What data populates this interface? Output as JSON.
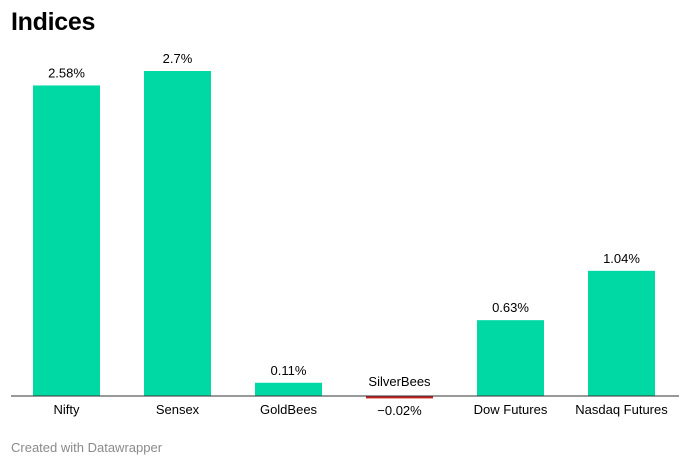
{
  "title": "Indices",
  "footer": "Created with Datawrapper",
  "colors": {
    "positive": "#00d9a3",
    "negative": "#c71e1d",
    "text": "#000000",
    "baseline": "#333333"
  },
  "chart_data": {
    "type": "bar",
    "title": "Indices",
    "xlabel": "",
    "ylabel": "",
    "categories": [
      "Nifty",
      "Sensex",
      "GoldBees",
      "SilverBees",
      "Dow Futures",
      "Nasdaq Futures"
    ],
    "values": [
      2.58,
      2.7,
      0.11,
      -0.02,
      0.63,
      1.04
    ],
    "value_labels": [
      "2.58%",
      "2.7%",
      "0.11%",
      "−0.02%",
      "0.63%",
      "1.04%"
    ],
    "grid": false,
    "legend": "none"
  }
}
